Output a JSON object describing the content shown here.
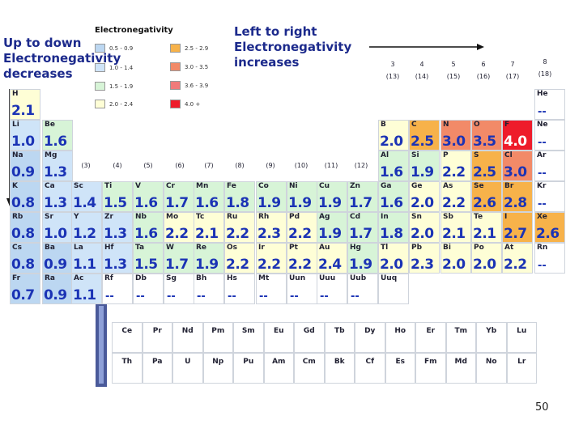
{
  "notes": {
    "down": "Up to down\nElectronegativity\ndecreases",
    "right": "Left to right\nElectronegativity\nincreases"
  },
  "legend": {
    "title": "Electronegativity",
    "ranges": [
      "0.5 - 0.9",
      "1.0 - 1.4",
      "1.5 - 1.9",
      "2.0 - 2.4",
      "2.5 - 2.9",
      "3.0 - 3.5",
      "3.6 - 3.9",
      "4.0 +"
    ],
    "colors": [
      "#bcd7f1",
      "#cfe4f8",
      "#d7f4d7",
      "#fefed6",
      "#f7b24a",
      "#f28a68",
      "#f07a7a",
      "#ee1c2b"
    ]
  },
  "group_labels": [
    "3\n(13)",
    "4\n(14)",
    "5\n(15)",
    "6\n(16)",
    "7\n(17)",
    "8\n(18)",
    "(3)",
    "(4)",
    "(5)",
    "(6)",
    "(7)",
    "(8)",
    "(9)",
    "(10)",
    "(11)",
    "(12)"
  ],
  "elements": [
    [
      "H",
      "2.1"
    ],
    [
      "He",
      "--"
    ],
    [
      "Li",
      "1.0"
    ],
    [
      "Be",
      "1.6"
    ],
    [
      "B",
      "2.0"
    ],
    [
      "C",
      "2.5"
    ],
    [
      "N",
      "3.0"
    ],
    [
      "O",
      "3.5"
    ],
    [
      "F",
      "4.0"
    ],
    [
      "Ne",
      "--"
    ],
    [
      "Na",
      "0.9"
    ],
    [
      "Mg",
      "1.3"
    ],
    [
      "Al",
      "1.6"
    ],
    [
      "Si",
      "1.9"
    ],
    [
      "P",
      "2.2"
    ],
    [
      "S",
      "2.5"
    ],
    [
      "Cl",
      "3.0"
    ],
    [
      "Ar",
      "--"
    ],
    [
      "K",
      "0.8"
    ],
    [
      "Ca",
      "1.3"
    ],
    [
      "Sc",
      "1.4"
    ],
    [
      "Ti",
      "1.5"
    ],
    [
      "V",
      "1.6"
    ],
    [
      "Cr",
      "1.7"
    ],
    [
      "Mn",
      "1.6"
    ],
    [
      "Fe",
      "1.8"
    ],
    [
      "Co",
      "1.9"
    ],
    [
      "Ni",
      "1.9"
    ],
    [
      "Cu",
      "1.9"
    ],
    [
      "Zn",
      "1.7"
    ],
    [
      "Ga",
      "1.6"
    ],
    [
      "Ge",
      "2.0"
    ],
    [
      "As",
      "2.2"
    ],
    [
      "Se",
      "2.6"
    ],
    [
      "Br",
      "2.8"
    ],
    [
      "Kr",
      "--"
    ],
    [
      "Rb",
      "0.8"
    ],
    [
      "Sr",
      "1.0"
    ],
    [
      "Y",
      "1.2"
    ],
    [
      "Zr",
      "1.3"
    ],
    [
      "Nb",
      "1.6"
    ],
    [
      "Mo",
      "2.2"
    ],
    [
      "Tc",
      "2.1"
    ],
    [
      "Ru",
      "2.2"
    ],
    [
      "Rh",
      "2.3"
    ],
    [
      "Pd",
      "2.2"
    ],
    [
      "Ag",
      "1.9"
    ],
    [
      "Cd",
      "1.7"
    ],
    [
      "In",
      "1.8"
    ],
    [
      "Sn",
      "2.0"
    ],
    [
      "Sb",
      "2.1"
    ],
    [
      "Te",
      "2.1"
    ],
    [
      "I",
      "2.7"
    ],
    [
      "Xe",
      "2.6"
    ],
    [
      "Cs",
      "0.8"
    ],
    [
      "Ba",
      "0.9"
    ],
    [
      "La",
      "1.1"
    ],
    [
      "Hf",
      "1.3"
    ],
    [
      "Ta",
      "1.5"
    ],
    [
      "W",
      "1.7"
    ],
    [
      "Re",
      "1.9"
    ],
    [
      "Os",
      "2.2"
    ],
    [
      "Ir",
      "2.2"
    ],
    [
      "Pt",
      "2.2"
    ],
    [
      "Au",
      "2.4"
    ],
    [
      "Hg",
      "1.9"
    ],
    [
      "Tl",
      "2.0"
    ],
    [
      "Pb",
      "2.3"
    ],
    [
      "Bi",
      "2.0"
    ],
    [
      "Po",
      "2.0"
    ],
    [
      "At",
      "2.2"
    ],
    [
      "Rn",
      "--"
    ],
    [
      "Fr",
      "0.7"
    ],
    [
      "Ra",
      "0.9"
    ],
    [
      "Ac",
      "1.1"
    ],
    [
      "Rf",
      "--"
    ],
    [
      "Db",
      "--"
    ],
    [
      "Sg",
      "--"
    ],
    [
      "Bh",
      "--"
    ],
    [
      "Hs",
      "--"
    ],
    [
      "Mt",
      "--"
    ],
    [
      "Uun",
      "--"
    ],
    [
      "Uuu",
      "--"
    ],
    [
      "Uub",
      "--"
    ],
    [
      "Uuq",
      ""
    ]
  ],
  "f_block": [
    [
      "Ce",
      "Pr",
      "Nd",
      "Pm",
      "Sm",
      "Eu",
      "Gd",
      "Tb",
      "Dy",
      "Ho",
      "Er",
      "Tm",
      "Yb",
      "Lu"
    ],
    [
      "Th",
      "Pa",
      "U",
      "Np",
      "Pu",
      "Am",
      "Cm",
      "Bk",
      "Cf",
      "Es",
      "Fm",
      "Md",
      "No",
      "Lr"
    ]
  ],
  "page_number": "50"
}
